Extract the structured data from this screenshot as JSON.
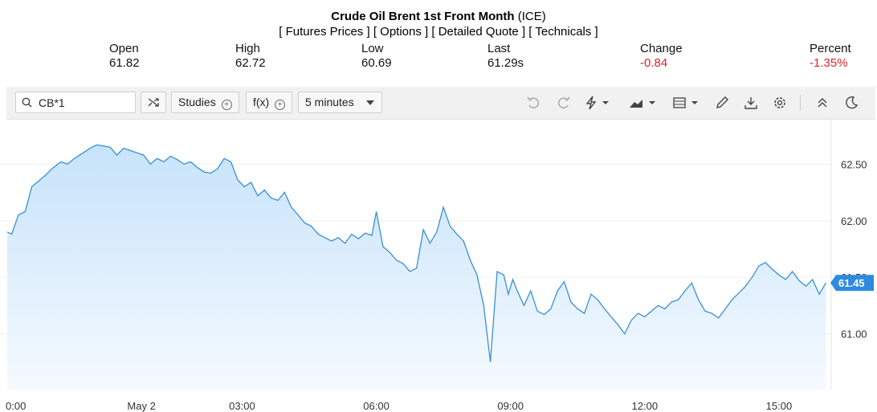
{
  "header": {
    "title": "Crude Oil Brent 1st Front Month",
    "exchange": "(ICE)",
    "links": [
      "[ Futures Prices ]",
      "[ Options ]",
      "[ Detailed Quote ]",
      "[ Technicals ]"
    ]
  },
  "quote": {
    "open_label": "Open",
    "open": "61.82",
    "high_label": "High",
    "high": "62.72",
    "low_label": "Low",
    "low": "60.69",
    "last_label": "Last",
    "last": "61.29s",
    "change_label": "Change",
    "change": "-0.84",
    "percent_label": "Percent",
    "percent": "-1.35%"
  },
  "toolbar": {
    "symbol": "CB*1",
    "studies_label": "Studies",
    "fx_label": "f(x)",
    "interval_label": "5 minutes"
  },
  "colors": {
    "line": "#3b8fd4",
    "fill_top": "#c7e3fb",
    "fill_bottom": "#f5faff",
    "price_tag": "#2f8ae0",
    "negative": "#e0222b"
  },
  "chart_data": {
    "type": "area",
    "title": "",
    "xlabel": "",
    "ylabel": "",
    "ylim": [
      60.75,
      62.85
    ],
    "y_ticks": [
      61.0,
      61.5,
      62.0,
      62.5
    ],
    "y_tick_labels": [
      "61.00",
      "61.50",
      "62.00",
      "62.50"
    ],
    "x_ticks": [
      {
        "t": 0.0,
        "label": "0:00"
      },
      {
        "t": 3.0,
        "label": "May 2"
      },
      {
        "t": 5.25,
        "label": "03:00"
      },
      {
        "t": 8.25,
        "label": "06:00"
      },
      {
        "t": 11.25,
        "label": "09:00"
      },
      {
        "t": 14.25,
        "label": "12:00"
      },
      {
        "t": 17.25,
        "label": "15:00"
      }
    ],
    "last_price_label": "61.45",
    "last_price": 61.45,
    "series": [
      {
        "x": [
          0.0,
          0.1,
          0.25,
          0.4,
          0.55,
          0.7,
          0.85,
          1.0,
          1.2,
          1.35,
          1.5,
          1.7,
          1.85,
          2.0,
          2.15,
          2.3,
          2.45,
          2.6,
          2.75,
          2.9,
          3.05,
          3.2,
          3.35,
          3.5,
          3.65,
          3.8,
          3.95,
          4.1,
          4.25,
          4.4,
          4.55,
          4.7,
          4.85,
          5.0,
          5.15,
          5.3,
          5.45,
          5.6,
          5.75,
          5.9,
          6.05,
          6.2,
          6.35,
          6.5,
          6.65,
          6.8,
          6.95,
          7.1,
          7.25,
          7.4,
          7.55,
          7.7,
          7.85,
          8.0,
          8.15,
          8.25,
          8.4,
          8.55,
          8.7,
          8.85,
          9.0,
          9.15,
          9.3,
          9.45,
          9.6,
          9.75,
          9.9,
          10.05,
          10.2,
          10.35,
          10.5,
          10.65,
          10.8,
          10.95,
          11.1,
          11.2,
          11.3,
          11.4,
          11.55,
          11.7,
          11.85,
          12.0,
          12.15,
          12.3,
          12.45,
          12.6,
          12.75,
          12.9,
          13.05,
          13.2,
          13.35,
          13.5,
          13.65,
          13.8,
          13.95,
          14.1,
          14.25,
          14.4,
          14.55,
          14.7,
          14.85,
          15.0,
          15.15,
          15.3,
          15.45,
          15.6,
          15.75,
          15.9,
          16.05,
          16.2,
          16.35,
          16.5,
          16.65,
          16.8,
          16.95,
          17.1,
          17.25,
          17.4,
          17.55,
          17.7,
          17.85,
          18.0,
          18.15,
          18.3
        ],
        "y": [
          61.9,
          61.88,
          62.05,
          62.08,
          62.3,
          62.35,
          62.4,
          62.46,
          62.52,
          62.5,
          62.55,
          62.6,
          62.64,
          62.67,
          62.66,
          62.65,
          62.58,
          62.64,
          62.62,
          62.6,
          62.58,
          62.5,
          62.55,
          62.52,
          62.57,
          62.54,
          62.5,
          62.52,
          62.47,
          62.43,
          62.42,
          62.46,
          62.55,
          62.52,
          62.36,
          62.3,
          62.34,
          62.22,
          62.27,
          62.2,
          62.18,
          62.25,
          62.12,
          62.05,
          61.98,
          61.95,
          61.88,
          61.85,
          61.82,
          61.85,
          61.8,
          61.88,
          61.84,
          61.89,
          61.87,
          62.08,
          61.77,
          61.72,
          61.65,
          61.62,
          61.55,
          61.58,
          61.92,
          61.8,
          61.9,
          62.12,
          61.95,
          61.88,
          61.82,
          61.65,
          61.52,
          61.25,
          60.75,
          61.55,
          61.52,
          61.35,
          61.48,
          61.38,
          61.25,
          61.38,
          61.2,
          61.17,
          61.22,
          61.38,
          61.46,
          61.28,
          61.22,
          61.18,
          61.35,
          61.3,
          61.22,
          61.15,
          61.08,
          61.0,
          61.12,
          61.18,
          61.15,
          61.2,
          61.25,
          61.22,
          61.28,
          61.3,
          61.38,
          61.45,
          61.3,
          61.2,
          61.18,
          61.14,
          61.22,
          61.3,
          61.36,
          61.42,
          61.5,
          61.6,
          61.63,
          61.57,
          61.52,
          61.48,
          61.55,
          61.47,
          61.42,
          61.48,
          61.35,
          61.45
        ]
      }
    ]
  }
}
